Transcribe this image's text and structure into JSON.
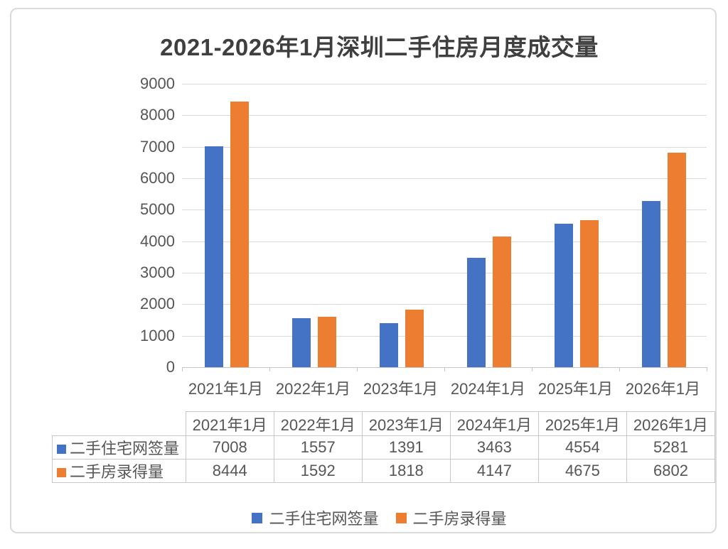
{
  "title": "2021-2026年1月深圳二手住房月度成交量",
  "palette": {
    "series_blue": "#4472C4",
    "series_orange": "#ED7D31",
    "grid_line": "#D9D9D9",
    "axis_line": "#C6C6C6",
    "table_border": "#C8C8C8",
    "card_border": "#DADADA",
    "label_text": "#565656",
    "title_text": "#3F3F3F"
  },
  "chart_data": {
    "type": "bar",
    "title": "2021-2026年1月深圳二手住房月度成交量",
    "categories": [
      "2021年1月",
      "2022年1月",
      "2023年1月",
      "2024年1月",
      "2025年1月",
      "2026年1月"
    ],
    "series": [
      {
        "name": "二手住宅网签量",
        "color": "#4472C4",
        "values": [
          7008,
          1557,
          1391,
          3463,
          4554,
          5281
        ]
      },
      {
        "name": "二手房录得量",
        "color": "#ED7D31",
        "values": [
          8444,
          1592,
          1818,
          4147,
          4675,
          6802
        ]
      }
    ],
    "ylim": [
      0,
      9000
    ],
    "yticks": [
      0,
      1000,
      2000,
      3000,
      4000,
      5000,
      6000,
      7000,
      8000,
      9000
    ],
    "grid": true,
    "legend_position": "bottom",
    "show_data_table": true
  }
}
